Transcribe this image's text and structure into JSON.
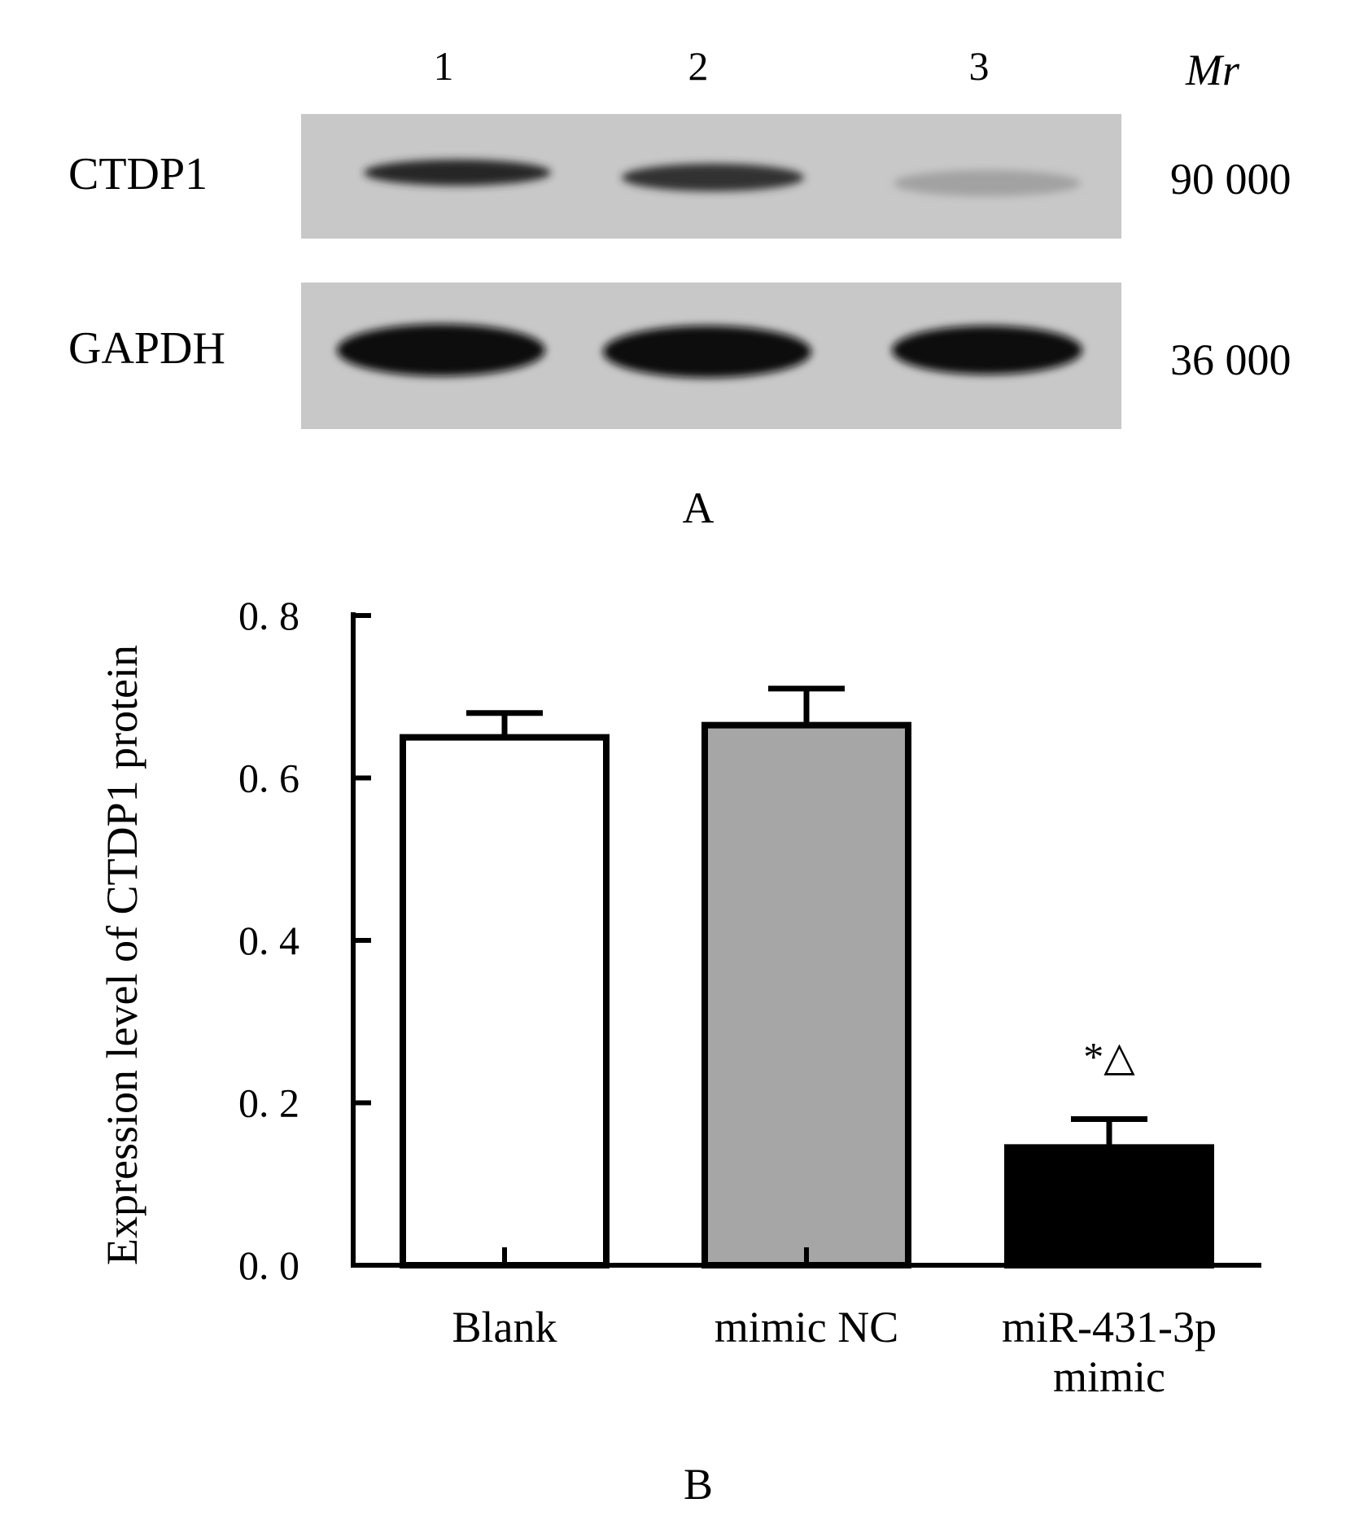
{
  "panel_a": {
    "caption": "A",
    "lanes": [
      "1",
      "2",
      "3"
    ],
    "mr_header": "Mr",
    "membrane_color": "#c8c8c8",
    "rows": [
      {
        "label": "CTDP1",
        "mr": "90 000",
        "band_intensity": [
          0.85,
          0.8,
          0.2
        ]
      },
      {
        "label": "GAPDH",
        "mr": "36 000",
        "band_intensity": [
          1.0,
          1.0,
          1.0
        ]
      }
    ]
  },
  "panel_b": {
    "caption": "B"
  },
  "chart_data": {
    "type": "bar",
    "categories": [
      "Blank",
      "mimic NC",
      "miR-431-3p mimic"
    ],
    "category_label_lines": [
      [
        "Blank"
      ],
      [
        "mimic NC"
      ],
      [
        "miR-431-3p",
        "mimic"
      ]
    ],
    "values": [
      0.65,
      0.665,
      0.145
    ],
    "errors": [
      0.03,
      0.045,
      0.035
    ],
    "bar_colors": [
      "#ffffff",
      "#a6a6a6",
      "#000000"
    ],
    "annotations": [
      "",
      "",
      "*△"
    ],
    "ylabel": "Expression level of CTDP1 protein",
    "xlabel": "",
    "ylim": [
      0,
      0.8
    ],
    "yticks": [
      0.0,
      0.2,
      0.4,
      0.6,
      0.8
    ],
    "ytick_labels": [
      "0. 0",
      "0. 2",
      "0. 4",
      "0. 6",
      "0. 8"
    ],
    "grid": false,
    "legend": "none"
  }
}
